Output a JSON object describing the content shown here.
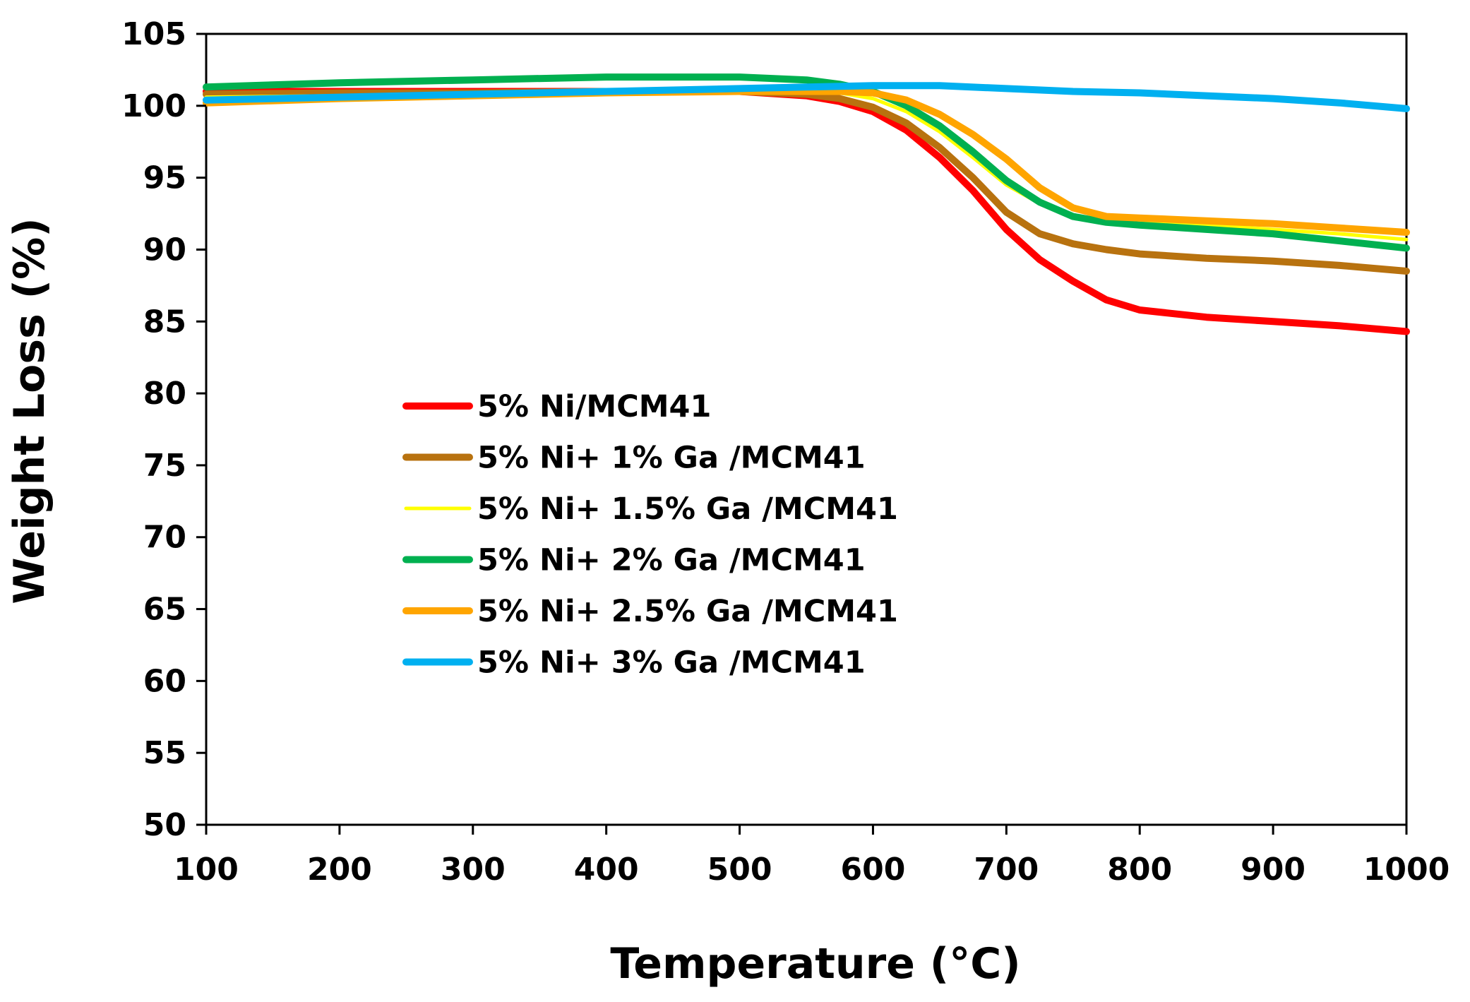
{
  "chart_data": {
    "type": "line",
    "title": "",
    "xlabel": "Temperature (°C)",
    "ylabel": "Weight Loss (%)",
    "xlim": [
      100,
      1000
    ],
    "ylim": [
      50,
      105
    ],
    "x_ticks": [
      100,
      200,
      300,
      400,
      500,
      600,
      700,
      800,
      900,
      1000
    ],
    "y_ticks": [
      50,
      55,
      60,
      65,
      70,
      75,
      80,
      85,
      90,
      95,
      100,
      105
    ],
    "x_tick_labels": [
      "100",
      "200",
      "300",
      "400",
      "500",
      "600",
      "700",
      "800",
      "900",
      "1000"
    ],
    "y_tick_labels": [
      "50",
      "55",
      "60",
      "65",
      "70",
      "75",
      "80",
      "85",
      "90",
      "95",
      "100",
      "105"
    ],
    "grid": false,
    "legend_position": "center-left",
    "series": [
      {
        "name": "5% Ni/MCM41",
        "color": "#ff0000",
        "x": [
          100,
          200,
          300,
          400,
          500,
          550,
          575,
          600,
          625,
          650,
          675,
          700,
          725,
          750,
          775,
          800,
          850,
          900,
          950,
          1000
        ],
        "y": [
          101.0,
          101.0,
          101.0,
          101.0,
          101.0,
          100.7,
          100.3,
          99.6,
          98.3,
          96.4,
          94.1,
          91.4,
          89.3,
          87.8,
          86.5,
          85.8,
          85.3,
          85.0,
          84.7,
          84.3
        ]
      },
      {
        "name": "5% Ni+ 1% Ga /MCM41",
        "color": "#b8720f",
        "x": [
          100,
          200,
          300,
          400,
          500,
          550,
          575,
          600,
          625,
          650,
          675,
          700,
          725,
          750,
          775,
          800,
          850,
          900,
          950,
          1000
        ],
        "y": [
          100.8,
          100.9,
          100.9,
          101.0,
          101.0,
          100.8,
          100.5,
          99.9,
          98.8,
          97.1,
          95.0,
          92.6,
          91.1,
          90.4,
          90.0,
          89.7,
          89.4,
          89.2,
          88.9,
          88.5
        ]
      },
      {
        "name": "5% Ni+ 1.5% Ga /MCM41",
        "color": "#ffff00",
        "x": [
          100,
          200,
          300,
          400,
          500,
          550,
          575,
          600,
          625,
          650,
          675,
          700,
          725,
          750,
          775,
          800,
          850,
          900,
          950,
          1000
        ],
        "y": [
          100.6,
          100.7,
          100.8,
          101.0,
          101.2,
          101.1,
          100.9,
          100.5,
          99.6,
          98.2,
          96.4,
          94.5,
          93.2,
          92.4,
          92.0,
          91.9,
          91.7,
          91.4,
          91.1,
          90.7
        ]
      },
      {
        "name": "5% Ni+ 2% Ga /MCM41",
        "color": "#00b050",
        "x": [
          100,
          200,
          300,
          400,
          500,
          550,
          575,
          600,
          625,
          650,
          675,
          700,
          725,
          750,
          775,
          800,
          850,
          900,
          950,
          1000
        ],
        "y": [
          101.3,
          101.6,
          101.8,
          102.0,
          102.0,
          101.8,
          101.5,
          101.0,
          100.0,
          98.6,
          96.8,
          94.8,
          93.3,
          92.3,
          91.9,
          91.7,
          91.4,
          91.1,
          90.6,
          90.1
        ]
      },
      {
        "name": "5% Ni+ 2.5% Ga /MCM41",
        "color": "#ffa500",
        "x": [
          100,
          200,
          300,
          400,
          500,
          550,
          575,
          600,
          625,
          650,
          675,
          700,
          725,
          750,
          775,
          800,
          850,
          900,
          950,
          1000
        ],
        "y": [
          100.2,
          100.5,
          100.7,
          100.9,
          101.0,
          101.0,
          101.0,
          100.9,
          100.4,
          99.4,
          98.0,
          96.3,
          94.3,
          92.9,
          92.3,
          92.2,
          92.0,
          91.8,
          91.5,
          91.2
        ]
      },
      {
        "name": "5% Ni+ 3% Ga /MCM41",
        "color": "#00b0f0",
        "x": [
          100,
          200,
          300,
          400,
          500,
          550,
          600,
          650,
          700,
          750,
          800,
          850,
          900,
          950,
          1000
        ],
        "y": [
          100.4,
          100.6,
          100.8,
          101.0,
          101.2,
          101.3,
          101.4,
          101.4,
          101.2,
          101.0,
          100.9,
          100.7,
          100.5,
          100.2,
          99.8
        ]
      }
    ]
  }
}
